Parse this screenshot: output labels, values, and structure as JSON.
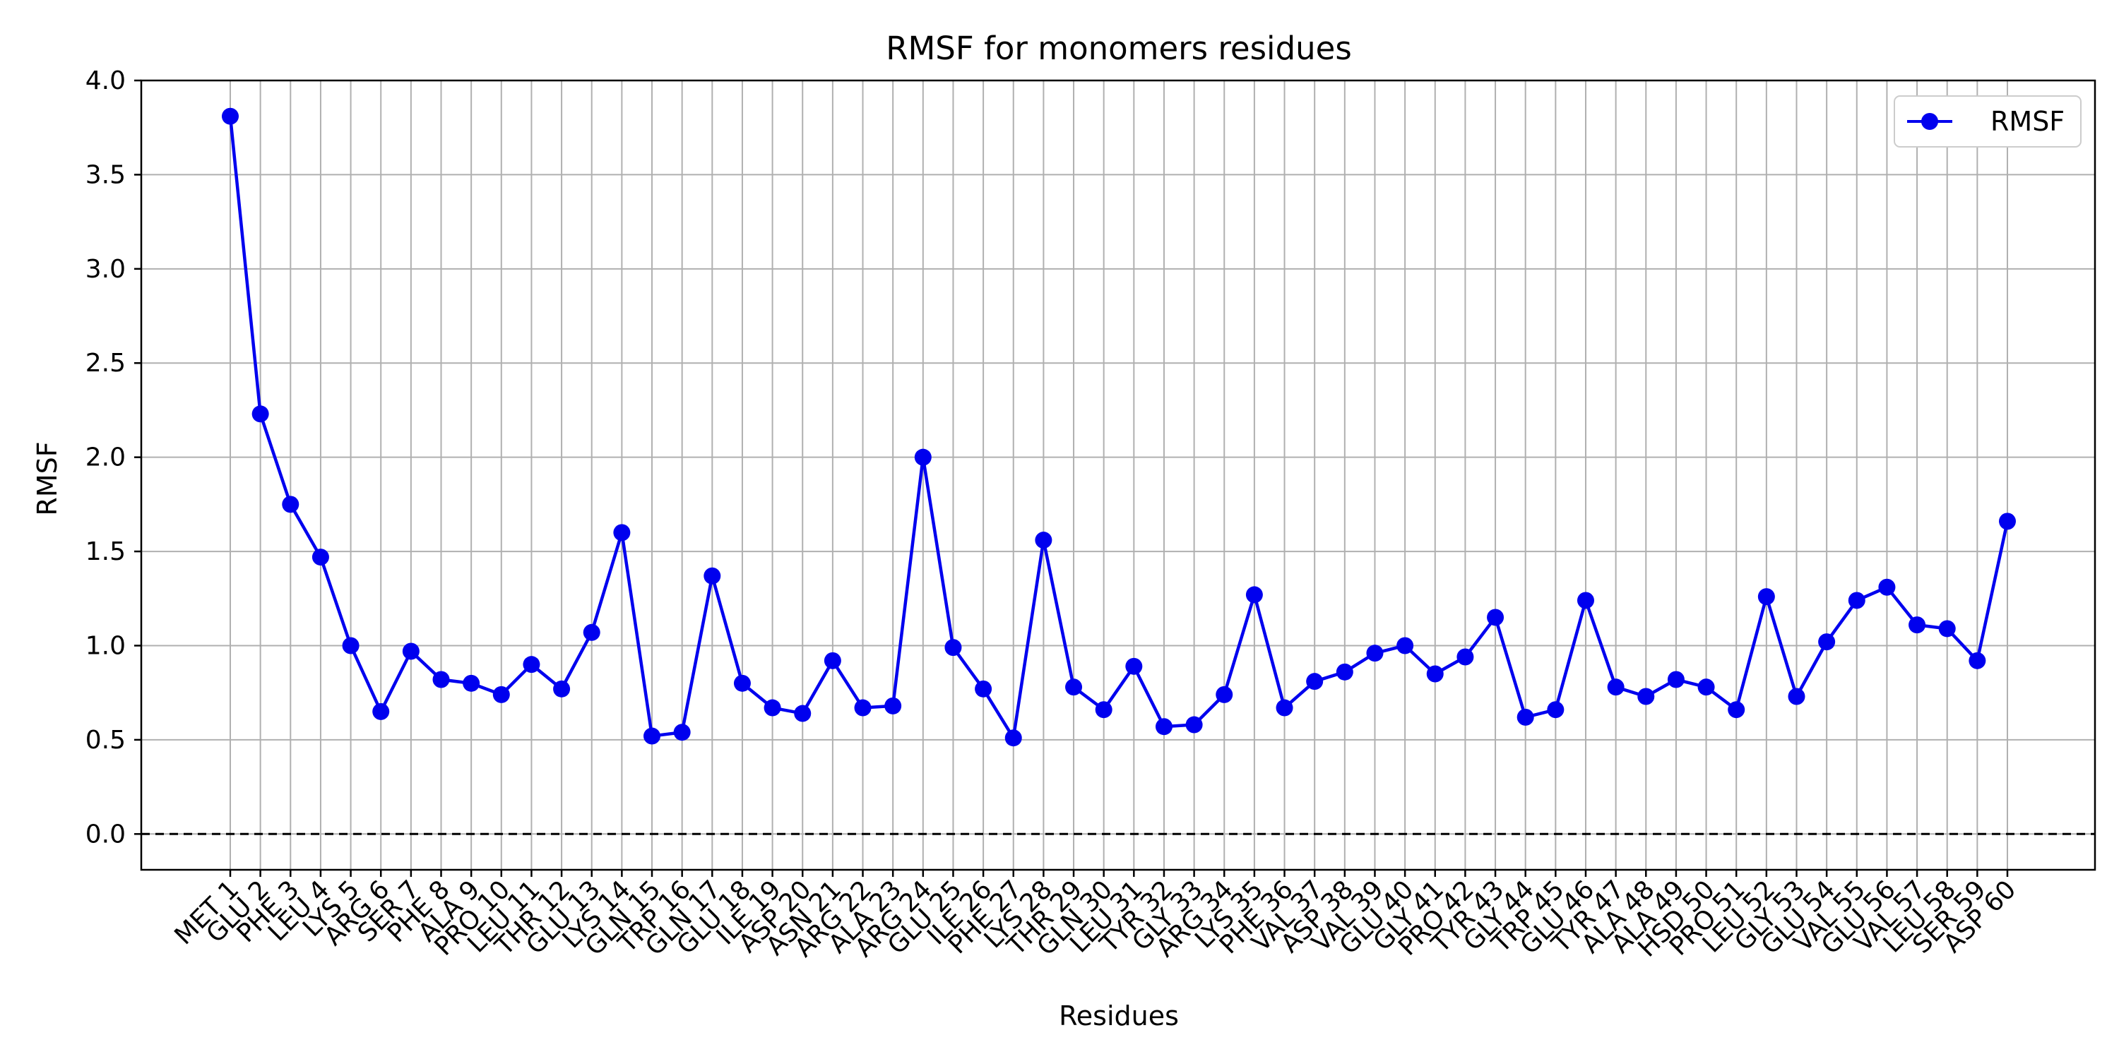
{
  "chart_data": {
    "type": "line",
    "title": "RMSF for monomers residues",
    "xlabel": "Residues",
    "ylabel": "RMSF",
    "ylim": [
      -0.19,
      4.0
    ],
    "yticks": [
      0.0,
      0.5,
      1.0,
      1.5,
      2.0,
      2.5,
      3.0,
      3.5,
      4.0
    ],
    "ytick_labels": [
      "0.0",
      "0.5",
      "1.0",
      "1.5",
      "2.0",
      "2.5",
      "3.0",
      "3.5",
      "4.0"
    ],
    "grid": true,
    "legend_position": "top-right",
    "reference_line": 0.0,
    "color": "#0000ee",
    "categories": [
      "MET 1",
      "GLU 2",
      "PHE 3",
      "LEU 4",
      "LYS 5",
      "ARG 6",
      "SER 7",
      "PHE 8",
      "ALA 9",
      "PRO 10",
      "LEU 11",
      "THR 12",
      "GLU 13",
      "LYS 14",
      "GLN 15",
      "TRP 16",
      "GLN 17",
      "GLU 18",
      "ILE 19",
      "ASP 20",
      "ASN 21",
      "ARG 22",
      "ALA 23",
      "ARG 24",
      "GLU 25",
      "ILE 26",
      "PHE 27",
      "LYS 28",
      "THR 29",
      "GLN 30",
      "LEU 31",
      "TYR 32",
      "GLY 33",
      "ARG 34",
      "LYS 35",
      "PHE 36",
      "VAL 37",
      "ASP 38",
      "VAL 39",
      "GLU 40",
      "GLY 41",
      "PRO 42",
      "TYR 43",
      "GLY 44",
      "TRP 45",
      "GLU 46",
      "TYR 47",
      "ALA 48",
      "ALA 49",
      "HSD 50",
      "PRO 51",
      "LEU 52",
      "GLY 53",
      "GLU 54",
      "VAL 55",
      "GLU 56",
      "VAL 57",
      "LEU 58",
      "SER 59",
      "ASP 60"
    ],
    "series": [
      {
        "name": "RMSF",
        "values": [
          3.81,
          2.23,
          1.75,
          1.47,
          1.0,
          0.65,
          0.97,
          0.82,
          0.8,
          0.74,
          0.9,
          0.77,
          1.07,
          1.6,
          0.52,
          0.54,
          1.37,
          0.8,
          0.67,
          0.64,
          0.92,
          0.67,
          0.68,
          2.0,
          0.99,
          0.77,
          0.51,
          1.56,
          0.78,
          0.66,
          0.89,
          0.57,
          0.58,
          0.74,
          1.27,
          0.67,
          0.81,
          0.86,
          0.96,
          1.0,
          0.85,
          0.94,
          1.15,
          0.62,
          0.66,
          1.24,
          0.78,
          0.73,
          0.82,
          0.78,
          0.66,
          1.26,
          0.73,
          1.02,
          1.24,
          1.31,
          1.11,
          1.09,
          0.92,
          1.66
        ]
      }
    ]
  }
}
